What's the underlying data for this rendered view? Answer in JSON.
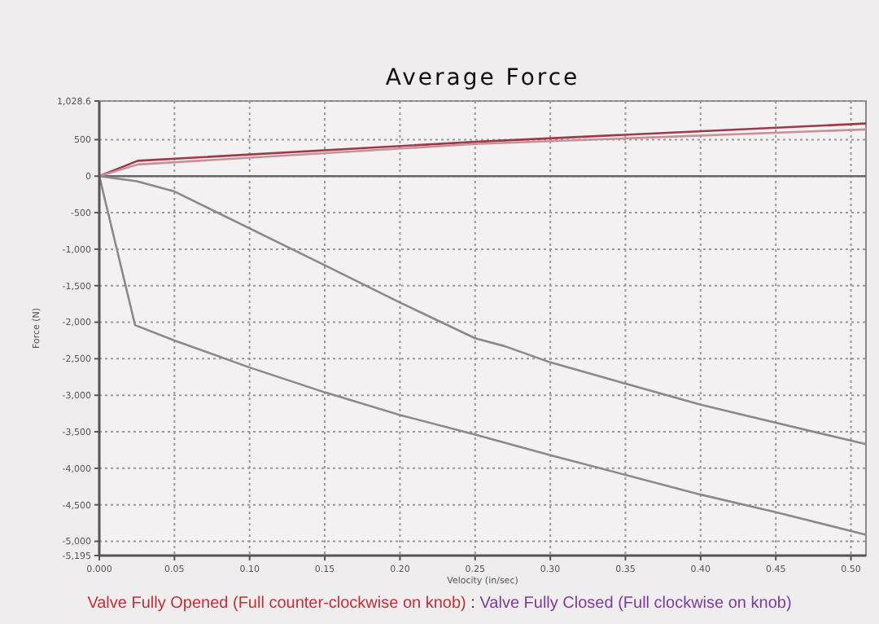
{
  "chart_data": {
    "type": "line",
    "title": "Average Force",
    "xlabel": "Velocity (in/sec)",
    "ylabel": "Force (N)",
    "annotations": [
      "Valve Fully Opened (Full counter-clockwise on knob)",
      ":",
      "Valve Fully Closed (Full clockwise on knob)"
    ],
    "xlim": [
      0,
      0.51
    ],
    "ylim": [
      -5195,
      1028.6
    ],
    "xticks": [
      {
        "value": 0,
        "label": "0.000"
      },
      0.05,
      {
        "value": 0.1,
        "label": "0.10"
      },
      0.15,
      {
        "value": 0.2,
        "label": "0.20"
      },
      0.25,
      {
        "value": 0.3,
        "label": "0.30"
      },
      0.35,
      {
        "value": 0.4,
        "label": "0.40"
      },
      0.45,
      {
        "value": 0.5,
        "label": "0.50"
      }
    ],
    "yticks": [
      {
        "value": -5195,
        "label": "-5,195"
      },
      {
        "value": -5000,
        "label": "-5,000"
      },
      {
        "value": -4500,
        "label": "-4,500"
      },
      {
        "value": -4000,
        "label": "-4,000"
      },
      {
        "value": -3500,
        "label": "-3,500"
      },
      {
        "value": -3000,
        "label": "-3,000"
      },
      {
        "value": -2500,
        "label": "-2,500"
      },
      {
        "value": -2000,
        "label": "-2,000"
      },
      {
        "value": -1500,
        "label": "-1,500"
      },
      {
        "value": -1000,
        "label": "-1,000"
      },
      -500,
      0,
      500,
      {
        "value": 1028.6,
        "label": "1,028.6"
      }
    ],
    "grid": true,
    "marker": "none",
    "line_style": "solid",
    "ref_lines": [
      {
        "axis": "y",
        "value": 0,
        "color": "#666666"
      }
    ],
    "series": [
      {
        "color": "#a03848",
        "x": [
          0,
          0.0256,
          0.25,
          0.51
        ],
        "values": [
          0,
          210,
          470,
          720
        ]
      },
      {
        "color": "#c89098",
        "x": [
          0,
          0.0256,
          0.25,
          0.51
        ],
        "values": [
          0,
          160,
          440,
          640
        ]
      },
      {
        "color": "#8a8a8a",
        "x": [
          0,
          0.025,
          0.05,
          0.15,
          0.2,
          0.25,
          0.27,
          0.3,
          0.4,
          0.51
        ],
        "values": [
          0,
          -70,
          -210,
          -1220,
          -1730,
          -2220,
          -2330,
          -2550,
          -3130,
          -3670
        ]
      },
      {
        "color": "#8a8a8a",
        "x": [
          0,
          0.0238,
          0.05,
          0.1,
          0.15,
          0.2,
          0.25,
          0.3,
          0.4,
          0.45,
          0.51
        ],
        "values": [
          0,
          -2040,
          -2250,
          -2620,
          -2960,
          -3270,
          -3540,
          -3820,
          -4360,
          -4600,
          -4910
        ]
      }
    ]
  }
}
